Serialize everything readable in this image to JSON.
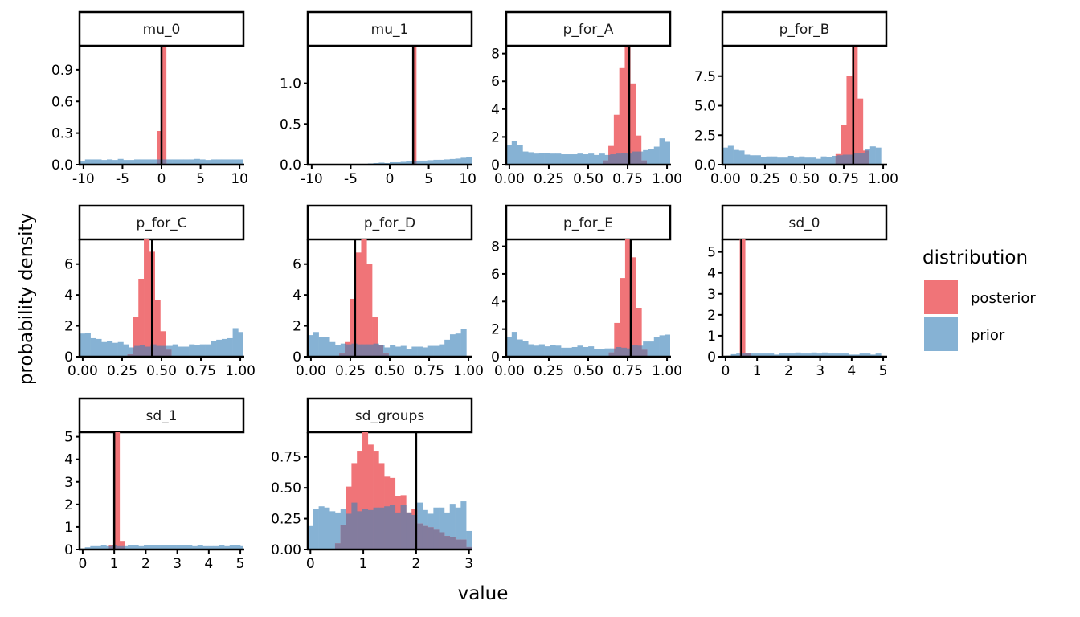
{
  "chart_data": {
    "type": "histogram-facets",
    "xlabel": "value",
    "ylabel": "probability density",
    "legend": {
      "title": "distribution",
      "position": "right",
      "entries": [
        {
          "name": "posterior",
          "color": "#F07478"
        },
        {
          "name": "prior",
          "color": "#86B2D4"
        }
      ]
    },
    "overlap_color": "#837C9E",
    "reference_line_color": "#000000",
    "panels": [
      {
        "name": "mu_0",
        "xlim": [
          -10.5,
          10.5
        ],
        "ylim": [
          0,
          1.12
        ],
        "xticks": [
          -10,
          -5,
          0,
          5,
          10
        ],
        "xtick_labels": [
          "-10",
          "-5",
          "0",
          "5",
          "10"
        ],
        "yticks": [
          0,
          0.3,
          0.6,
          0.9
        ],
        "ytick_labels": [
          "0.0",
          "0.3",
          "0.6",
          "0.9"
        ],
        "reference": 0,
        "prior": {
          "start": -10.5,
          "width": 0.7,
          "values": [
            0.03,
            0.05,
            0.05,
            0.05,
            0.045,
            0.05,
            0.045,
            0.055,
            0.045,
            0.045,
            0.05,
            0.05,
            0.05,
            0.05,
            0.05,
            0.05,
            0.05,
            0.05,
            0.05,
            0.05,
            0.05,
            0.055,
            0.05,
            0.045,
            0.05,
            0.05,
            0.05,
            0.05,
            0.05,
            0.05,
            0.03
          ]
        },
        "posterior": {
          "start": -0.6,
          "width": 0.6,
          "values": [
            0.32,
            1.12
          ]
        }
      },
      {
        "name": "mu_1",
        "xlim": [
          -10.5,
          10.5
        ],
        "ylim": [
          0,
          1.45
        ],
        "xticks": [
          -10,
          -5,
          0,
          5,
          10
        ],
        "xtick_labels": [
          "-10",
          "-5",
          "0",
          "5",
          "10"
        ],
        "yticks": [
          0,
          0.5,
          1.0
        ],
        "ytick_labels": [
          "0.0",
          "0.5",
          "1.0"
        ],
        "reference": 3,
        "prior": {
          "start": -3.5,
          "width": 0.7,
          "values": [
            0.01,
            0.015,
            0.02,
            0.025,
            0.02,
            0.03,
            0.03,
            0.035,
            0.04,
            0.045,
            0.05,
            0.05,
            0.055,
            0.06,
            0.06,
            0.065,
            0.07,
            0.075,
            0.085,
            0.095,
            0.1,
            0.11,
            0.12,
            0.13,
            0.15,
            0.11
          ]
        },
        "posterior": {
          "start": 3.0,
          "width": 0.4,
          "values": [
            1.45
          ]
        }
      },
      {
        "name": "p_for_A",
        "xlim": [
          -0.02,
          1.02
        ],
        "ylim": [
          0,
          8.5
        ],
        "xticks": [
          0,
          0.25,
          0.5,
          0.75,
          1.0
        ],
        "xtick_labels": [
          "0.00",
          "0.25",
          "0.50",
          "0.75",
          "1.00"
        ],
        "yticks": [
          0,
          2,
          4,
          6,
          8
        ],
        "ytick_labels": [
          "0",
          "2",
          "4",
          "6",
          "8"
        ],
        "reference": 0.76,
        "prior": {
          "start": -0.02,
          "width": 0.0347,
          "values": [
            1.4,
            1.7,
            1.4,
            0.95,
            0.9,
            0.8,
            0.85,
            0.85,
            0.8,
            0.8,
            0.75,
            0.75,
            0.75,
            0.8,
            0.75,
            0.8,
            0.7,
            0.8,
            0.7,
            0.75,
            0.8,
            0.85,
            0.8,
            0.95,
            0.95,
            1.05,
            1.15,
            1.3,
            1.9,
            1.65
          ]
        },
        "posterior": {
          "start": 0.593,
          "width": 0.0347,
          "values": [
            0.3,
            1.35,
            3.6,
            6.95,
            8.5,
            5.85,
            2.1,
            0.3
          ]
        }
      },
      {
        "name": "p_for_B",
        "xlim": [
          -0.02,
          1.02
        ],
        "ylim": [
          0,
          10.0
        ],
        "xticks": [
          0,
          0.25,
          0.5,
          0.75,
          1.0
        ],
        "xtick_labels": [
          "0.00",
          "0.25",
          "0.50",
          "0.75",
          "1.00"
        ],
        "yticks": [
          0,
          2.5,
          5.0,
          7.5
        ],
        "ytick_labels": [
          "0.0",
          "2.5",
          "5.0",
          "7.5"
        ],
        "reference": 0.81,
        "prior": {
          "start": -0.02,
          "width": 0.0347,
          "values": [
            1.45,
            1.6,
            1.25,
            1.2,
            0.85,
            0.8,
            0.8,
            0.65,
            0.7,
            0.7,
            0.6,
            0.6,
            0.75,
            0.6,
            0.7,
            0.6,
            0.6,
            0.5,
            0.7,
            0.65,
            0.75,
            0.8,
            0.85,
            0.85,
            0.95,
            1.0,
            1.3,
            1.55,
            1.45
          ]
        },
        "posterior": {
          "start": 0.698,
          "width": 0.0347,
          "values": [
            0.9,
            3.4,
            7.5,
            10.0,
            5.6,
            1.2
          ]
        }
      },
      {
        "name": "p_for_C",
        "xlim": [
          -0.02,
          1.02
        ],
        "ylim": [
          0,
          7.6
        ],
        "xticks": [
          0,
          0.25,
          0.5,
          0.75,
          1.0
        ],
        "xtick_labels": [
          "0.00",
          "0.25",
          "0.50",
          "0.75",
          "1.00"
        ],
        "yticks": [
          0,
          2,
          4,
          6
        ],
        "ytick_labels": [
          "0",
          "2",
          "4",
          "6"
        ],
        "reference": 0.44,
        "prior": {
          "start": -0.02,
          "width": 0.0347,
          "values": [
            1.5,
            1.55,
            1.2,
            1.15,
            0.95,
            1.0,
            0.9,
            0.95,
            0.8,
            0.6,
            0.7,
            0.75,
            0.65,
            0.8,
            0.7,
            0.7,
            0.7,
            0.8,
            0.65,
            0.65,
            0.8,
            0.75,
            0.8,
            0.8,
            1.0,
            1.1,
            1.15,
            1.2,
            1.85,
            1.6
          ]
        },
        "posterior": {
          "start": 0.284,
          "width": 0.0347,
          "values": [
            0.15,
            2.6,
            5.05,
            7.6,
            6.8,
            3.65,
            1.65,
            0.45
          ]
        }
      },
      {
        "name": "p_for_D",
        "xlim": [
          -0.02,
          1.02
        ],
        "ylim": [
          0,
          7.6
        ],
        "xticks": [
          0,
          0.25,
          0.5,
          0.75,
          1.0
        ],
        "xtick_labels": [
          "0.00",
          "0.25",
          "0.50",
          "0.75",
          "1.00"
        ],
        "yticks": [
          0,
          2,
          4,
          6
        ],
        "ytick_labels": [
          "0",
          "2",
          "4",
          "6"
        ],
        "reference": 0.28,
        "prior": {
          "start": -0.02,
          "width": 0.0347,
          "values": [
            1.4,
            1.6,
            1.3,
            1.25,
            0.95,
            0.75,
            0.85,
            0.8,
            0.85,
            0.8,
            0.8,
            0.8,
            0.85,
            0.75,
            0.6,
            0.75,
            0.65,
            0.7,
            0.5,
            0.65,
            0.65,
            0.6,
            0.7,
            0.7,
            0.8,
            1.1,
            1.45,
            1.5,
            1.8
          ]
        },
        "posterior": {
          "start": 0.18,
          "width": 0.0347,
          "values": [
            0.2,
            0.95,
            3.75,
            6.75,
            7.6,
            6.0,
            2.55,
            0.75,
            0.2
          ]
        }
      },
      {
        "name": "p_for_E",
        "xlim": [
          -0.02,
          1.02
        ],
        "ylim": [
          0,
          8.5
        ],
        "xticks": [
          0,
          0.25,
          0.5,
          0.75,
          1.0
        ],
        "xtick_labels": [
          "0.00",
          "0.25",
          "0.50",
          "0.75",
          "1.00"
        ],
        "yticks": [
          0,
          2,
          4,
          6,
          8
        ],
        "ytick_labels": [
          "0",
          "2",
          "4",
          "6",
          "8"
        ],
        "reference": 0.77,
        "prior": {
          "start": -0.02,
          "width": 0.0347,
          "values": [
            1.45,
            1.8,
            1.25,
            1.15,
            0.9,
            0.8,
            0.9,
            0.75,
            0.85,
            0.8,
            0.65,
            0.65,
            0.7,
            0.8,
            0.7,
            0.75,
            0.55,
            0.55,
            0.6,
            0.6,
            0.7,
            0.65,
            0.6,
            0.85,
            0.8,
            1.1,
            1.1,
            1.4,
            1.55,
            1.6
          ]
        },
        "posterior": {
          "start": 0.63,
          "width": 0.0347,
          "values": [
            0.3,
            2.45,
            5.7,
            8.5,
            7.2,
            3.5,
            0.5
          ]
        }
      },
      {
        "name": "sd_0",
        "xlim": [
          -0.1,
          5.1
        ],
        "ylim": [
          0,
          5.6
        ],
        "xticks": [
          0,
          1,
          2,
          3,
          4,
          5
        ],
        "xtick_labels": [
          "0",
          "1",
          "2",
          "3",
          "4",
          "5"
        ],
        "yticks": [
          0,
          1,
          2,
          3,
          4,
          5
        ],
        "ytick_labels": [
          "0",
          "1",
          "2",
          "3",
          "4",
          "5"
        ],
        "reference": 0.5,
        "prior": {
          "start": 0.0,
          "width": 0.17,
          "values": [
            0.05,
            0.12,
            0.15,
            0.15,
            0.15,
            0.15,
            0.15,
            0.15,
            0.15,
            0.1,
            0.15,
            0.15,
            0.15,
            0.2,
            0.15,
            0.15,
            0.2,
            0.15,
            0.2,
            0.15,
            0.15,
            0.15,
            0.15,
            0.1,
            0.1,
            0.15,
            0.15,
            0.1,
            0.15
          ]
        },
        "posterior": {
          "start": 0.45,
          "width": 0.17,
          "values": [
            5.6,
            0.15
          ]
        }
      },
      {
        "name": "sd_1",
        "xlim": [
          -0.1,
          5.1
        ],
        "ylim": [
          0,
          5.2
        ],
        "xticks": [
          0,
          1,
          2,
          3,
          4,
          5
        ],
        "xtick_labels": [
          "0",
          "1",
          "2",
          "3",
          "4",
          "5"
        ],
        "yticks": [
          0,
          1,
          2,
          3,
          4,
          5
        ],
        "ytick_labels": [
          "0",
          "1",
          "2",
          "3",
          "4",
          "5"
        ],
        "reference": 1.0,
        "prior": {
          "start": -0.1,
          "width": 0.17,
          "values": [
            0.05,
            0.1,
            0.15,
            0.15,
            0.2,
            0.15,
            0.2,
            0.15,
            0.15,
            0.2,
            0.2,
            0.15,
            0.2,
            0.2,
            0.2,
            0.2,
            0.2,
            0.2,
            0.2,
            0.2,
            0.2,
            0.15,
            0.2,
            0.15,
            0.15,
            0.15,
            0.2,
            0.15,
            0.2,
            0.2,
            0.15
          ]
        },
        "posterior": {
          "start": 0.83,
          "width": 0.17,
          "values": [
            0.2,
            5.2,
            0.35
          ]
        }
      },
      {
        "name": "sd_groups",
        "xlim": [
          -0.05,
          3.05
        ],
        "ylim": [
          0,
          0.95
        ],
        "xticks": [
          0,
          1,
          2,
          3
        ],
        "xtick_labels": [
          "0",
          "1",
          "2",
          "3"
        ],
        "yticks": [
          0,
          0.25,
          0.5,
          0.75
        ],
        "ytick_labels": [
          "0.00",
          "0.25",
          "0.50",
          "0.75"
        ],
        "reference": 2.0,
        "prior": {
          "start": -0.05,
          "width": 0.1033,
          "values": [
            0.19,
            0.33,
            0.35,
            0.34,
            0.31,
            0.3,
            0.33,
            0.29,
            0.38,
            0.31,
            0.33,
            0.32,
            0.34,
            0.34,
            0.35,
            0.36,
            0.3,
            0.36,
            0.3,
            0.28,
            0.38,
            0.32,
            0.29,
            0.34,
            0.34,
            0.3,
            0.37,
            0.34,
            0.39,
            0.15
          ]
        },
        "posterior": {
          "start": -0.05,
          "width": 0.1033,
          "values": [
            0,
            0,
            0,
            0,
            0,
            0.05,
            0.2,
            0.51,
            0.7,
            0.8,
            0.95,
            0.85,
            0.8,
            0.7,
            0.59,
            0.58,
            0.43,
            0.44,
            0.3,
            0.33,
            0.21,
            0.19,
            0.18,
            0.16,
            0.14,
            0.11,
            0.1,
            0.08,
            0.08,
            0.02
          ]
        }
      }
    ]
  }
}
